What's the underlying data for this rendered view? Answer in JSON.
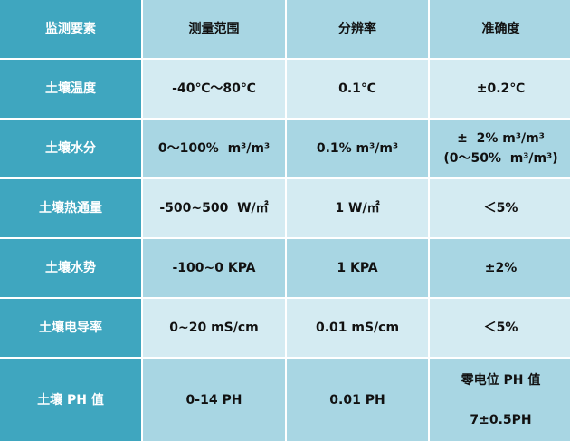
{
  "table": {
    "header": [
      "监测要素",
      "测量范围",
      "分辨率",
      "准确度"
    ],
    "rows": [
      [
        "土壤温度",
        "-40℃～80℃",
        "0.1℃",
        "±0.2℃"
      ],
      [
        "土壤水分",
        "0～100%  m³/m³",
        "0.1% m³/m³",
        [
          "±  2% m³/m³",
          "(0～50%  m³/m³)"
        ]
      ],
      [
        "土壤热通量",
        "-500~500  W/㎡",
        "1 W/㎡",
        "＜5%"
      ],
      [
        "土壤水势",
        "-100~0 KPA",
        "1 KPA",
        "±2%"
      ],
      [
        "土壤电导率",
        "0~20 mS/cm",
        "0.01 mS/cm",
        "＜5%"
      ],
      [
        "土壤 PH 值",
        "0-14 PH",
        "0.01 PH",
        [
          "零电位 PH 值",
          "7±0.5PH"
        ]
      ]
    ]
  }
}
